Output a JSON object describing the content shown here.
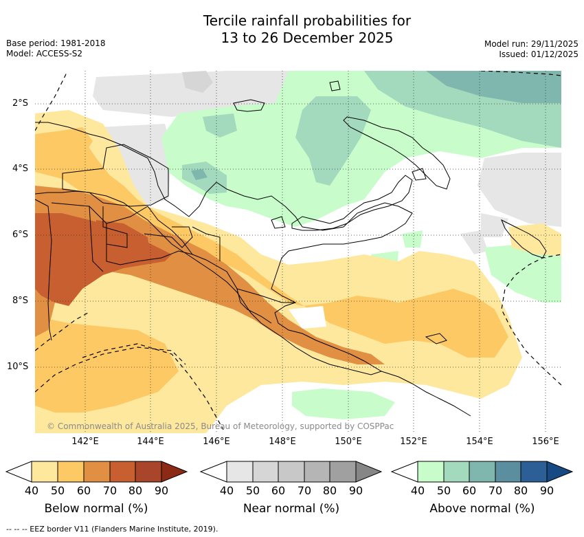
{
  "title_line1": "Tercile rainfall probabilities for",
  "title_line2": "13 to 26 December 2025",
  "base_period": "Base period: 1981-2018",
  "model": "Model: ACCESS-S2",
  "model_run": "Model run: 29/11/2025",
  "issued": "Issued: 01/12/2025",
  "lat_labels": [
    "2°S",
    "4°S",
    "6°S",
    "8°S",
    "10°S"
  ],
  "lon_labels": [
    "142°E",
    "144°E",
    "146°E",
    "148°E",
    "150°E",
    "152°E",
    "154°E",
    "156°E"
  ],
  "copyright": "© Commonwealth of Australia 2025, Bureau of Meteorology, supported by COSPPac",
  "footer": "-- -- -- EEZ border V11 (Flanders Marine Institute, 2019).",
  "legends": {
    "below": {
      "title": "Below normal (%)",
      "ticks": [
        "40",
        "50",
        "60",
        "70",
        "80",
        "90"
      ],
      "colors": [
        "#ffffff",
        "#fee89e",
        "#fdc965",
        "#e08f43",
        "#c85f31",
        "#a8452a",
        "#8b2b16"
      ]
    },
    "near": {
      "title": "Near normal (%)",
      "ticks": [
        "40",
        "50",
        "60",
        "70",
        "80",
        "90"
      ],
      "colors": [
        "#ffffff",
        "#e6e6e6",
        "#d6d6d6",
        "#c8c8c8",
        "#b5b5b5",
        "#a0a0a0",
        "#868686"
      ]
    },
    "above": {
      "title": "Above normal (%)",
      "ticks": [
        "40",
        "50",
        "60",
        "70",
        "80",
        "90"
      ],
      "colors": [
        "#ffffff",
        "#c8fccb",
        "#a3d9bc",
        "#7fb7ae",
        "#5b8fa0",
        "#2c5f96",
        "#174a82"
      ]
    }
  }
}
